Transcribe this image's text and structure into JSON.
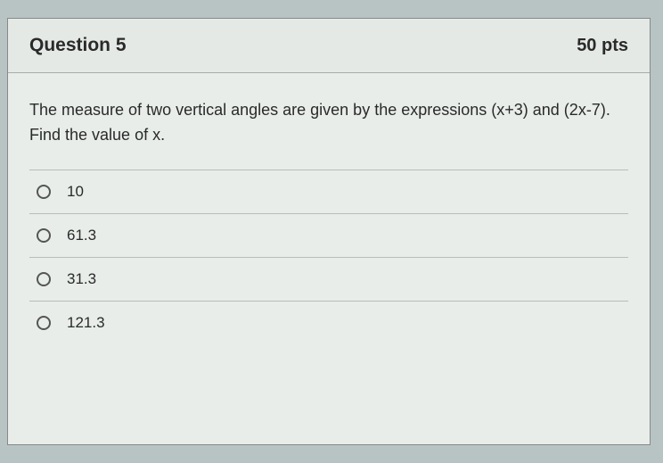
{
  "header": {
    "title": "Question 5",
    "points": "50 pts"
  },
  "body": {
    "prompt": "The measure of two vertical angles are given by the expressions (x+3) and (2x-7).  Find the value of x."
  },
  "options": [
    {
      "label": "10",
      "selected": false
    },
    {
      "label": "61.3",
      "selected": false
    },
    {
      "label": "31.3",
      "selected": false
    },
    {
      "label": "121.3",
      "selected": false
    }
  ],
  "style": {
    "page_background": "#b8c4c4",
    "card_background": "#e8ede9",
    "border_color": "#888",
    "divider_color": "#bbb",
    "text_color": "#2a2a2a",
    "radio_border_color": "#555",
    "title_fontsize": 21,
    "points_fontsize": 20,
    "body_fontsize": 18,
    "option_fontsize": 17
  }
}
